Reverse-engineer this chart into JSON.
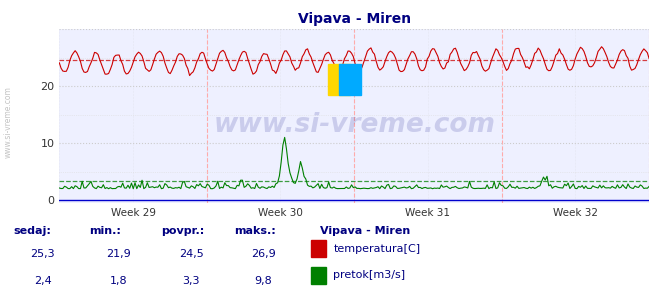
{
  "title": "Vipava - Miren",
  "title_color": "#000080",
  "bg_color": "#ffffff",
  "plot_bg_color": "#eef0ff",
  "grid_color_main": "#cccccc",
  "temp_color": "#cc0000",
  "flow_color": "#008000",
  "avg_temp": 24.5,
  "avg_flow": 3.3,
  "watermark_text": "www.si-vreme.com",
  "watermark_color": "#000080",
  "footer_label_color": "#000080",
  "footer_bg_color": "#ddeeff",
  "x_tick_labels": [
    "Week 29",
    "Week 30",
    "Week 31",
    "Week 32"
  ],
  "sedaj_temp": "25,3",
  "min_temp": "21,9",
  "povpr_temp": "24,5",
  "maks_temp": "26,9",
  "sedaj_flow": "2,4",
  "min_flow": "1,8",
  "povpr_flow": "3,3",
  "maks_flow": "9,8"
}
